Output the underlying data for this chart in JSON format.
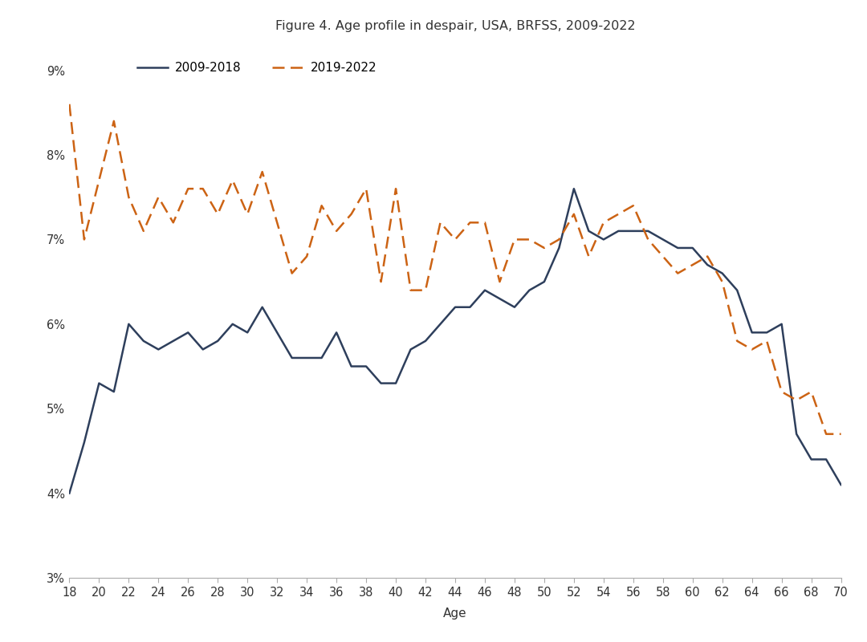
{
  "title": "Figure 4. Age profile in despair, USA, BRFSS, 2009-2022",
  "xlabel": "Age",
  "ylabel": "",
  "x_min": 18,
  "x_max": 70,
  "y_min": 0.03,
  "y_max": 0.093,
  "yticks": [
    0.03,
    0.04,
    0.05,
    0.06,
    0.07,
    0.08,
    0.09
  ],
  "xticks": [
    18,
    20,
    22,
    24,
    26,
    28,
    30,
    32,
    34,
    36,
    38,
    40,
    42,
    44,
    46,
    48,
    50,
    52,
    54,
    56,
    58,
    60,
    62,
    64,
    66,
    68,
    70
  ],
  "series_2009_2018": {
    "label": "2009-2018",
    "color": "#2e3f5c",
    "linewidth": 1.8,
    "values_x": [
      18,
      19,
      20,
      21,
      22,
      23,
      24,
      25,
      26,
      27,
      28,
      29,
      30,
      31,
      32,
      33,
      34,
      35,
      36,
      37,
      38,
      39,
      40,
      41,
      42,
      43,
      44,
      45,
      46,
      47,
      48,
      49,
      50,
      51,
      52,
      53,
      54,
      55,
      56,
      57,
      58,
      59,
      60,
      61,
      62,
      63,
      64,
      65,
      66,
      67,
      68,
      69,
      70
    ],
    "values_y": [
      0.04,
      0.046,
      0.053,
      0.052,
      0.06,
      0.058,
      0.057,
      0.058,
      0.059,
      0.057,
      0.058,
      0.06,
      0.059,
      0.062,
      0.059,
      0.056,
      0.056,
      0.056,
      0.059,
      0.055,
      0.055,
      0.053,
      0.053,
      0.057,
      0.058,
      0.06,
      0.062,
      0.062,
      0.064,
      0.063,
      0.062,
      0.064,
      0.065,
      0.069,
      0.076,
      0.071,
      0.07,
      0.071,
      0.071,
      0.071,
      0.07,
      0.069,
      0.069,
      0.067,
      0.066,
      0.064,
      0.059,
      0.059,
      0.06,
      0.047,
      0.044,
      0.044,
      0.041
    ]
  },
  "series_2019_2022": {
    "label": "2019-2022",
    "color": "#cc6314",
    "linewidth": 1.8,
    "values_x": [
      18,
      19,
      20,
      21,
      22,
      23,
      24,
      25,
      26,
      27,
      28,
      29,
      30,
      31,
      32,
      33,
      34,
      35,
      36,
      37,
      38,
      39,
      40,
      41,
      42,
      43,
      44,
      45,
      46,
      47,
      48,
      49,
      50,
      51,
      52,
      53,
      54,
      55,
      56,
      57,
      58,
      59,
      60,
      61,
      62,
      63,
      64,
      65,
      66,
      67,
      68,
      69,
      70
    ],
    "values_y": [
      0.086,
      0.07,
      0.077,
      0.084,
      0.075,
      0.071,
      0.075,
      0.072,
      0.076,
      0.076,
      0.073,
      0.077,
      0.073,
      0.078,
      0.072,
      0.066,
      0.068,
      0.074,
      0.071,
      0.073,
      0.076,
      0.065,
      0.076,
      0.064,
      0.064,
      0.072,
      0.07,
      0.072,
      0.072,
      0.065,
      0.07,
      0.07,
      0.069,
      0.07,
      0.073,
      0.068,
      0.072,
      0.073,
      0.074,
      0.07,
      0.068,
      0.066,
      0.067,
      0.068,
      0.065,
      0.058,
      0.057,
      0.058,
      0.052,
      0.051,
      0.052,
      0.047,
      0.047
    ]
  },
  "background_color": "#ffffff",
  "title_fontsize": 11.5,
  "axis_fontsize": 11,
  "tick_fontsize": 10.5,
  "legend_fontsize": 11,
  "spine_color": "#aaaaaa"
}
